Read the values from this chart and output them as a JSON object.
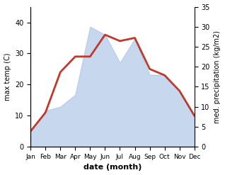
{
  "months": [
    "Jan",
    "Feb",
    "Mar",
    "Apr",
    "May",
    "Jun",
    "Jul",
    "Aug",
    "Sep",
    "Oct",
    "Nov",
    "Dec"
  ],
  "temperature": [
    5,
    11,
    24,
    29,
    29,
    36,
    34,
    35,
    25,
    23,
    18,
    10
  ],
  "precipitation": [
    4,
    9,
    10,
    13,
    30,
    28,
    21,
    27,
    18,
    18,
    14,
    8
  ],
  "temp_color": "#c0392b",
  "precip_color": "#aec6e8",
  "left_ylim": [
    0,
    45
  ],
  "right_ylim": [
    0,
    35
  ],
  "left_yticks": [
    0,
    10,
    20,
    30,
    40
  ],
  "right_yticks": [
    0,
    5,
    10,
    15,
    20,
    25,
    30,
    35
  ],
  "ylabel_left": "max temp (C)",
  "ylabel_right": "med. precipitation (kg/m2)",
  "xlabel": "date (month)",
  "temp_linewidth": 2.0
}
